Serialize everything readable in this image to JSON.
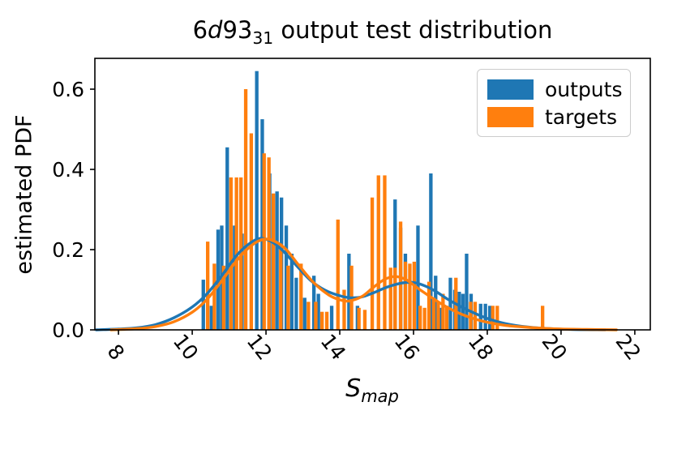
{
  "title": {
    "prefix": "6",
    "italic_d": "d",
    "mid": "93",
    "sub": "31",
    "rest": " output test distribution",
    "full": "6d93_31 output test distribution"
  },
  "axes": {
    "y_label": "estimated PDF",
    "x_label_base": "S",
    "x_label_sub": "map"
  },
  "legend": {
    "position": "upper right",
    "items": [
      {
        "label": "outputs",
        "color": "#1f77b4"
      },
      {
        "label": "targets",
        "color": "#ff7f0e"
      }
    ]
  },
  "chart_data": {
    "type": "bar",
    "subtype": "histogram-with-kde",
    "title": "6d93_31 output test distribution",
    "xlabel": "S_map",
    "ylabel": "estimated PDF",
    "xlim": [
      7.36,
      22.42
    ],
    "ylim": [
      0,
      0.6768
    ],
    "grid": false,
    "x_tick_values": [
      8,
      10,
      12,
      14,
      16,
      18,
      20,
      22
    ],
    "x_tick_labels": [
      "8",
      "10",
      "12",
      "14",
      "16",
      "18",
      "20",
      "22"
    ],
    "x_tick_rotation": -52,
    "y_tick_values": [
      0.0,
      0.2,
      0.4,
      0.6
    ],
    "y_tick_labels": [
      "0.0",
      "0.2",
      "0.4",
      "0.6"
    ],
    "bin_width": 0.095,
    "series": [
      {
        "name": "outputs",
        "color": "#1f77b4",
        "bars": [
          [
            10.3,
            0.125
          ],
          [
            10.52,
            0.06
          ],
          [
            10.7,
            0.25
          ],
          [
            10.8,
            0.26
          ],
          [
            10.95,
            0.455
          ],
          [
            11.15,
            0.26
          ],
          [
            11.35,
            0.24
          ],
          [
            11.75,
            0.645
          ],
          [
            11.9,
            0.525
          ],
          [
            12.1,
            0.39
          ],
          [
            12.3,
            0.345
          ],
          [
            12.42,
            0.33
          ],
          [
            12.55,
            0.26
          ],
          [
            12.7,
            0.19
          ],
          [
            12.82,
            0.13
          ],
          [
            13.05,
            0.08
          ],
          [
            13.3,
            0.135
          ],
          [
            13.42,
            0.09
          ],
          [
            13.78,
            0.06
          ],
          [
            14.25,
            0.19
          ],
          [
            14.48,
            0.06
          ],
          [
            15.5,
            0.325
          ],
          [
            15.65,
            0.255
          ],
          [
            15.78,
            0.19
          ],
          [
            16.12,
            0.26
          ],
          [
            16.47,
            0.39
          ],
          [
            16.6,
            0.135
          ],
          [
            16.75,
            0.055
          ],
          [
            17.0,
            0.13
          ],
          [
            17.12,
            0.1
          ],
          [
            17.24,
            0.095
          ],
          [
            17.34,
            0.09
          ],
          [
            17.44,
            0.19
          ],
          [
            17.56,
            0.09
          ],
          [
            17.82,
            0.065
          ],
          [
            17.95,
            0.065
          ],
          [
            18.07,
            0.06
          ]
        ],
        "kde": [
          [
            7.4,
            0.0
          ],
          [
            8.0,
            0.002
          ],
          [
            8.5,
            0.005
          ],
          [
            9.0,
            0.013
          ],
          [
            9.5,
            0.03
          ],
          [
            10.0,
            0.057
          ],
          [
            10.4,
            0.09
          ],
          [
            10.8,
            0.135
          ],
          [
            11.2,
            0.185
          ],
          [
            11.55,
            0.215
          ],
          [
            11.85,
            0.228
          ],
          [
            12.15,
            0.22
          ],
          [
            12.45,
            0.198
          ],
          [
            12.8,
            0.163
          ],
          [
            13.2,
            0.124
          ],
          [
            13.6,
            0.099
          ],
          [
            14.0,
            0.085
          ],
          [
            14.3,
            0.08
          ],
          [
            14.6,
            0.082
          ],
          [
            14.9,
            0.092
          ],
          [
            15.3,
            0.107
          ],
          [
            15.7,
            0.117
          ],
          [
            16.0,
            0.118
          ],
          [
            16.3,
            0.11
          ],
          [
            16.6,
            0.096
          ],
          [
            16.9,
            0.078
          ],
          [
            17.2,
            0.062
          ],
          [
            17.5,
            0.048
          ],
          [
            17.9,
            0.032
          ],
          [
            18.3,
            0.02
          ],
          [
            18.7,
            0.012
          ],
          [
            19.2,
            0.006
          ],
          [
            19.7,
            0.003
          ],
          [
            20.3,
            0.001
          ],
          [
            21.2,
            0.0
          ]
        ]
      },
      {
        "name": "targets",
        "color": "#ff7f0e",
        "bars": [
          [
            10.42,
            0.22
          ],
          [
            10.6,
            0.165
          ],
          [
            10.85,
            0.16
          ],
          [
            11.05,
            0.38
          ],
          [
            11.2,
            0.38
          ],
          [
            11.32,
            0.38
          ],
          [
            11.45,
            0.6
          ],
          [
            11.6,
            0.49
          ],
          [
            11.95,
            0.44
          ],
          [
            12.08,
            0.43
          ],
          [
            12.2,
            0.34
          ],
          [
            12.4,
            0.215
          ],
          [
            12.6,
            0.16
          ],
          [
            12.95,
            0.165
          ],
          [
            13.15,
            0.07
          ],
          [
            13.35,
            0.07
          ],
          [
            13.52,
            0.045
          ],
          [
            13.65,
            0.045
          ],
          [
            13.95,
            0.275
          ],
          [
            14.12,
            0.1
          ],
          [
            14.32,
            0.16
          ],
          [
            14.52,
            0.055
          ],
          [
            14.68,
            0.05
          ],
          [
            14.88,
            0.33
          ],
          [
            15.05,
            0.385
          ],
          [
            15.22,
            0.385
          ],
          [
            15.38,
            0.155
          ],
          [
            15.5,
            0.155
          ],
          [
            15.65,
            0.27
          ],
          [
            15.78,
            0.17
          ],
          [
            15.9,
            0.165
          ],
          [
            16.02,
            0.17
          ],
          [
            16.18,
            0.06
          ],
          [
            16.3,
            0.055
          ],
          [
            16.42,
            0.12
          ],
          [
            16.55,
            0.08
          ],
          [
            16.67,
            0.07
          ],
          [
            16.8,
            0.09
          ],
          [
            16.9,
            0.06
          ],
          [
            17.15,
            0.13
          ],
          [
            17.55,
            0.07
          ],
          [
            17.67,
            0.07
          ],
          [
            18.15,
            0.06
          ],
          [
            18.27,
            0.06
          ],
          [
            19.5,
            0.06
          ]
        ],
        "kde": [
          [
            7.8,
            0.0
          ],
          [
            8.5,
            0.003
          ],
          [
            9.0,
            0.008
          ],
          [
            9.5,
            0.02
          ],
          [
            10.0,
            0.044
          ],
          [
            10.4,
            0.076
          ],
          [
            10.8,
            0.122
          ],
          [
            11.2,
            0.172
          ],
          [
            11.6,
            0.21
          ],
          [
            11.95,
            0.226
          ],
          [
            12.25,
            0.22
          ],
          [
            12.55,
            0.2
          ],
          [
            12.9,
            0.16
          ],
          [
            13.3,
            0.117
          ],
          [
            13.7,
            0.087
          ],
          [
            14.0,
            0.075
          ],
          [
            14.25,
            0.072
          ],
          [
            14.6,
            0.083
          ],
          [
            14.9,
            0.105
          ],
          [
            15.2,
            0.125
          ],
          [
            15.5,
            0.133
          ],
          [
            15.8,
            0.125
          ],
          [
            16.1,
            0.105
          ],
          [
            16.4,
            0.086
          ],
          [
            16.7,
            0.068
          ],
          [
            17.0,
            0.052
          ],
          [
            17.3,
            0.039
          ],
          [
            17.7,
            0.026
          ],
          [
            18.1,
            0.017
          ],
          [
            18.5,
            0.011
          ],
          [
            19.0,
            0.007
          ],
          [
            19.5,
            0.004
          ],
          [
            20.0,
            0.002
          ],
          [
            20.7,
            0.001
          ],
          [
            21.5,
            0.0
          ]
        ]
      }
    ]
  }
}
